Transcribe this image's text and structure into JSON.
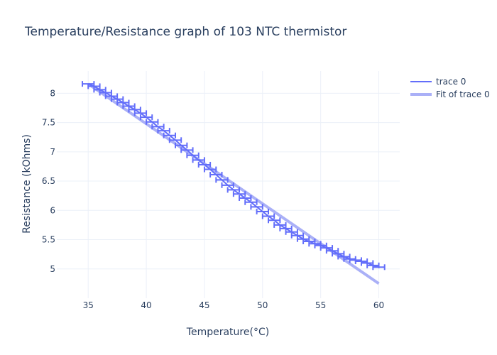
{
  "chart_data": {
    "type": "line",
    "title": "Temperature/Resistance graph of 103 NTC thermistor",
    "xlabel": "Temperature(°C)",
    "ylabel": "Resistance (kOhms)",
    "xlim": [
      32.3,
      61.8
    ],
    "ylim": [
      4.5,
      8.38
    ],
    "x_ticks": [
      35,
      40,
      45,
      50,
      55,
      60
    ],
    "y_ticks": [
      5,
      5.5,
      6,
      6.5,
      7,
      7.5,
      8
    ],
    "x_tick_labels": [
      "35",
      "40",
      "45",
      "50",
      "55",
      "60"
    ],
    "y_tick_labels": [
      "5",
      "5.5",
      "6",
      "6.5",
      "7",
      "7.5",
      "8"
    ],
    "error_x": 0.5,
    "series": [
      {
        "name": "trace 0",
        "color": "#636efa",
        "x": [
          35,
          35.5,
          36,
          36.5,
          37,
          37.5,
          38,
          38.5,
          39,
          39.5,
          40,
          40.5,
          41,
          41.5,
          42,
          42.5,
          43,
          43.5,
          44,
          44.5,
          45,
          45.5,
          46,
          46.5,
          47,
          47.5,
          48,
          48.5,
          49,
          49.5,
          50,
          50.5,
          51,
          51.5,
          52,
          52.5,
          53,
          53.5,
          54,
          54.5,
          55,
          55.5,
          56,
          56.5,
          57,
          57.5,
          58,
          58.5,
          59,
          59.5,
          60
        ],
        "y": [
          8.16,
          8.12,
          8.06,
          8.01,
          7.95,
          7.9,
          7.84,
          7.78,
          7.72,
          7.66,
          7.59,
          7.51,
          7.43,
          7.36,
          7.28,
          7.2,
          7.11,
          7.03,
          6.94,
          6.86,
          6.78,
          6.7,
          6.61,
          6.52,
          6.43,
          6.35,
          6.28,
          6.21,
          6.14,
          6.06,
          5.98,
          5.9,
          5.83,
          5.75,
          5.69,
          5.63,
          5.57,
          5.51,
          5.47,
          5.43,
          5.4,
          5.36,
          5.31,
          5.26,
          5.21,
          5.17,
          5.15,
          5.13,
          5.1,
          5.06,
          5.03
        ]
      },
      {
        "name": "Fit of trace 0",
        "color": "#aab0f7",
        "x": [
          35,
          60
        ],
        "y": [
          8.16,
          4.75
        ]
      }
    ],
    "legend": [
      {
        "label": "trace 0",
        "color": "#636efa"
      },
      {
        "label": "Fit of trace 0",
        "color": "#aab0f7"
      }
    ]
  }
}
